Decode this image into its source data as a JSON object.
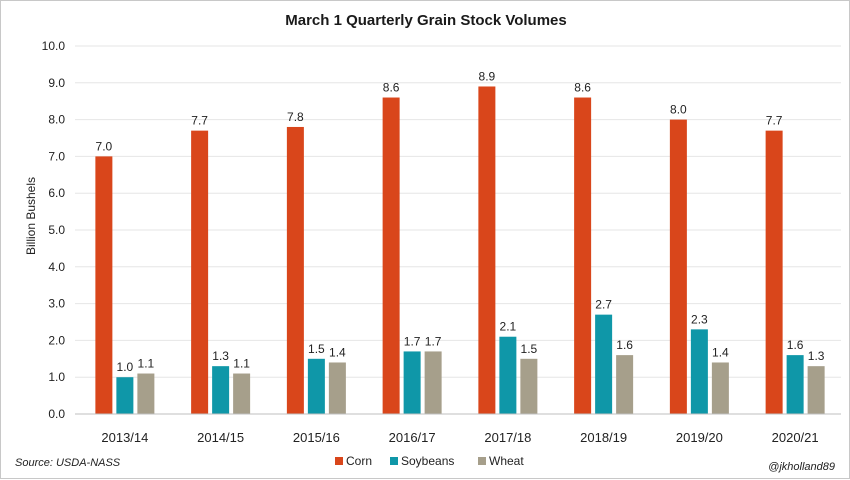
{
  "chart_data": {
    "type": "bar",
    "title": "March 1 Quarterly Grain Stock Volumes",
    "ylabel": "Billion Bushels",
    "xlabel": "",
    "ylim": [
      0,
      10
    ],
    "yticks": [
      "0.0",
      "1.0",
      "2.0",
      "3.0",
      "4.0",
      "5.0",
      "6.0",
      "7.0",
      "8.0",
      "9.0",
      "10.0"
    ],
    "grid": true,
    "legend_position": "bottom",
    "categories": [
      "2013/14",
      "2014/15",
      "2015/16",
      "2016/17",
      "2017/18",
      "2018/19",
      "2019/20",
      "2020/21"
    ],
    "series": [
      {
        "name": "Corn",
        "color": "#d9461b",
        "values": [
          7.0,
          7.7,
          7.8,
          8.6,
          8.9,
          8.6,
          8.0,
          7.7
        ],
        "labels": [
          "7.0",
          "7.7",
          "7.8",
          "8.6",
          "8.9",
          "8.6",
          "8.0",
          "7.7"
        ]
      },
      {
        "name": "Soybeans",
        "color": "#0f97a8",
        "values": [
          1.0,
          1.3,
          1.5,
          1.7,
          2.1,
          2.7,
          2.3,
          1.6
        ],
        "labels": [
          "1.0",
          "1.3",
          "1.5",
          "1.7",
          "2.1",
          "2.7",
          "2.3",
          "1.6"
        ]
      },
      {
        "name": "Wheat",
        "color": "#a69f8b",
        "values": [
          1.1,
          1.1,
          1.4,
          1.7,
          1.5,
          1.6,
          1.4,
          1.3
        ],
        "labels": [
          "1.1",
          "1.1",
          "1.4",
          "1.7",
          "1.5",
          "1.6",
          "1.4",
          "1.3"
        ]
      }
    ],
    "source": "Source: USDA-NASS",
    "credit": "@jkholland89"
  }
}
